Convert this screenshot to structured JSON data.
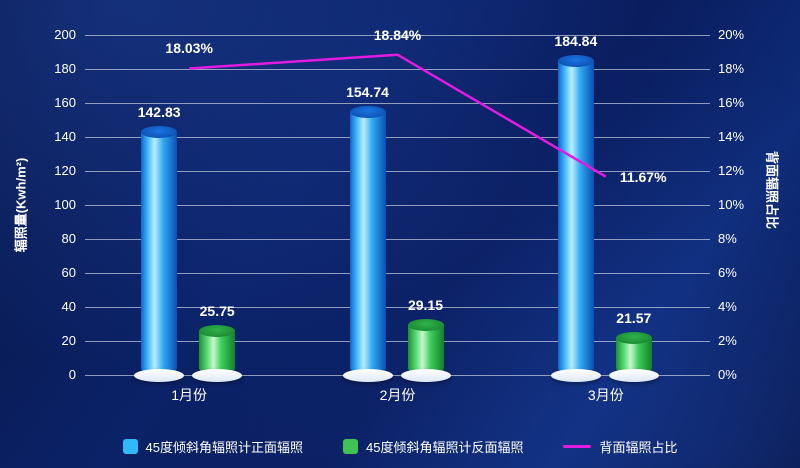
{
  "chart_data": {
    "type": "bar",
    "categories": [
      "1月份",
      "2月份",
      "3月份"
    ],
    "series": [
      {
        "name": "45度倾斜角辐照计正面辐照",
        "kind": "bar",
        "color": "#2fb9f8",
        "axis": "left",
        "values": [
          142.83,
          154.74,
          184.84
        ]
      },
      {
        "name": "45度倾斜角辐照计反面辐照",
        "kind": "bar",
        "color": "#41c353",
        "axis": "left",
        "values": [
          25.75,
          29.15,
          21.57
        ]
      },
      {
        "name": "背面辐照占比",
        "kind": "line",
        "color": "#e31ae0",
        "axis": "right",
        "values": [
          18.03,
          18.84,
          11.67
        ],
        "label_suffix": "%"
      }
    ],
    "left_axis": {
      "title": "辐照量(Kwh/m²)",
      "min": 0,
      "max": 200,
      "step": 20,
      "suffix": ""
    },
    "right_axis": {
      "title": "背面辐照占比",
      "min": 0,
      "max": 20,
      "step": 2,
      "suffix": "%"
    },
    "grid": true,
    "legend_position": "bottom"
  }
}
